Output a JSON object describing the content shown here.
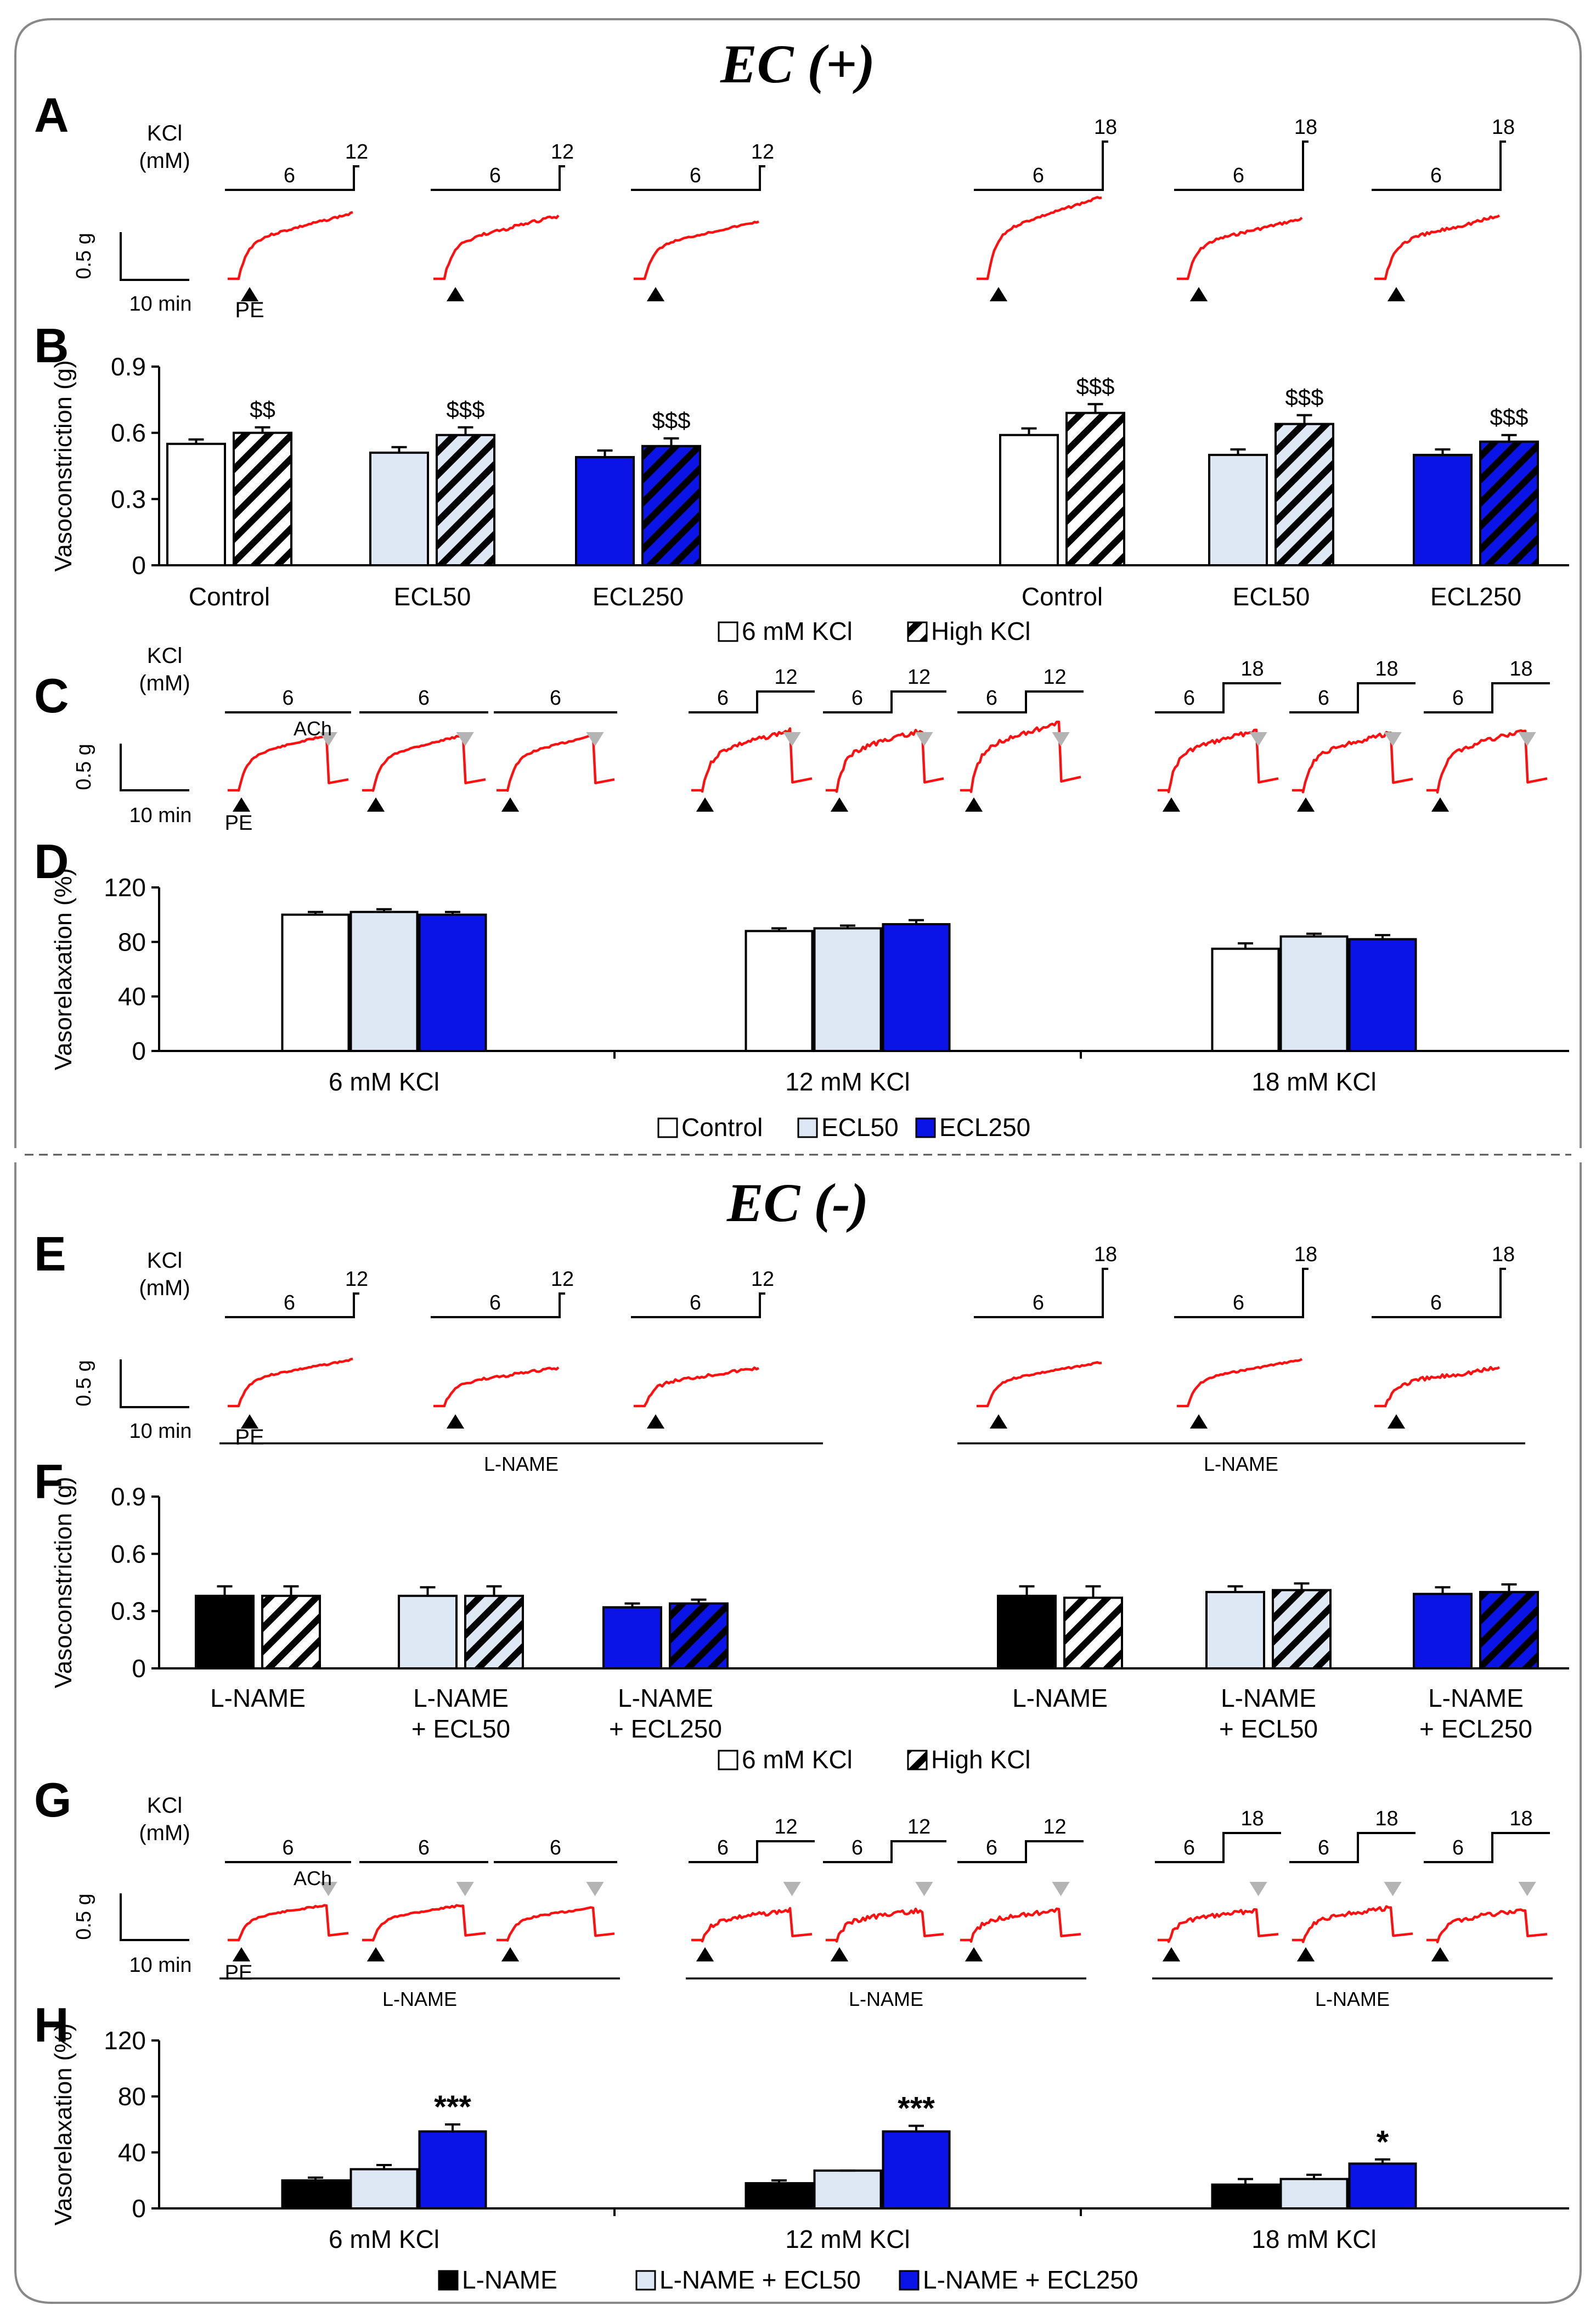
{
  "colors": {
    "trace": "#ff1010",
    "ctrl_fill": "#ffffff",
    "ecl50_fill": "#dde8f4",
    "ecl250_fill": "#0a14e6",
    "lname_fill": "#000000",
    "ach_marker": "#b4b4b4",
    "border": "#888888",
    "text": "#000000"
  },
  "sections": {
    "top": "EC (+)",
    "bottom": "EC (-)"
  },
  "panel_letters": {
    "A": "A",
    "B": "B",
    "C": "C",
    "D": "D",
    "E": "E",
    "F": "F",
    "G": "G",
    "H": "H"
  },
  "trace_labels": {
    "kcl": "KCl",
    "mm": "(mM)",
    "scale_y": "0.5 g",
    "scale_x": "10 min",
    "pe": "PE",
    "ach": "ACh",
    "lname": "L-NAME",
    "conc_6": "6",
    "conc_12": "12",
    "conc_18": "18"
  },
  "chart_data": [
    {
      "panel": "B",
      "type": "bar",
      "ylabel": "Vasoconstriction (g)",
      "ylim": [
        0,
        0.9
      ],
      "yticks": [
        "0",
        "0.3",
        "0.6",
        "0.9"
      ],
      "ytick_values": [
        0,
        0.3,
        0.6,
        0.9
      ],
      "groups": [
        "Control",
        "ECL50",
        "ECL250",
        "Control",
        "ECL50",
        "ECL250"
      ],
      "series": [
        {
          "name": "6 mM KCl",
          "values": [
            0.55,
            0.51,
            0.49,
            0.59,
            0.5,
            0.5
          ],
          "errors": [
            0.02,
            0.025,
            0.03,
            0.03,
            0.025,
            0.025
          ]
        },
        {
          "name": "High KCl",
          "values": [
            0.6,
            0.59,
            0.54,
            0.69,
            0.64,
            0.56
          ],
          "errors": [
            0.025,
            0.035,
            0.035,
            0.04,
            0.04,
            0.03
          ]
        }
      ],
      "annotations": [
        "$$",
        "$$$",
        "$$$",
        "$$$",
        "$$$",
        "$$$"
      ],
      "legend": [
        "6 mM KCl",
        "High KCl"
      ],
      "legend_position": "bottom"
    },
    {
      "panel": "D",
      "type": "bar",
      "ylabel": "Vasorelaxation (%)",
      "ylim": [
        0,
        120
      ],
      "yticks": [
        "0",
        "40",
        "80",
        "120"
      ],
      "ytick_values": [
        0,
        40,
        80,
        120
      ],
      "categories": [
        "6 mM KCl",
        "12 mM KCl",
        "18 mM KCl"
      ],
      "series": [
        {
          "name": "Control",
          "values": [
            100,
            88,
            75
          ],
          "errors": [
            2,
            2,
            4
          ]
        },
        {
          "name": "ECL50",
          "values": [
            102,
            90,
            84
          ],
          "errors": [
            2,
            2,
            2
          ]
        },
        {
          "name": "ECL250",
          "values": [
            100,
            93,
            82
          ],
          "errors": [
            2,
            3,
            3
          ]
        }
      ],
      "legend": [
        "Control",
        "ECL50",
        "ECL250"
      ],
      "legend_position": "bottom"
    },
    {
      "panel": "F",
      "type": "bar",
      "ylabel": "Vasoconstriction (g)",
      "ylim": [
        0,
        0.9
      ],
      "yticks": [
        "0",
        "0.3",
        "0.6",
        "0.9"
      ],
      "ytick_values": [
        0,
        0.3,
        0.6,
        0.9
      ],
      "groups": [
        "L-NAME",
        "L-NAME\n+ ECL50",
        "L-NAME\n+ ECL250",
        "L-NAME",
        "L-NAME\n+ ECL50",
        "L-NAME\n+ ECL250"
      ],
      "series": [
        {
          "name": "6 mM KCl",
          "values": [
            0.38,
            0.38,
            0.32,
            0.38,
            0.4,
            0.39
          ],
          "errors": [
            0.05,
            0.045,
            0.02,
            0.05,
            0.03,
            0.035
          ]
        },
        {
          "name": "High KCl",
          "values": [
            0.38,
            0.38,
            0.34,
            0.37,
            0.41,
            0.4
          ],
          "errors": [
            0.05,
            0.05,
            0.02,
            0.06,
            0.035,
            0.04
          ]
        }
      ],
      "legend": [
        "6 mM KCl",
        "High KCl"
      ],
      "legend_position": "bottom"
    },
    {
      "panel": "H",
      "type": "bar",
      "ylabel": "Vasorelaxation (%)",
      "ylim": [
        0,
        120
      ],
      "yticks": [
        "0",
        "40",
        "80",
        "120"
      ],
      "ytick_values": [
        0,
        40,
        80,
        120
      ],
      "categories": [
        "6 mM KCl",
        "12 mM KCl",
        "18 mM KCl"
      ],
      "series": [
        {
          "name": "L-NAME",
          "values": [
            20,
            18,
            17
          ],
          "errors": [
            2,
            2,
            4
          ]
        },
        {
          "name": "L-NAME + ECL50",
          "values": [
            28,
            27,
            21
          ],
          "errors": [
            3,
            0,
            3
          ]
        },
        {
          "name": "L-NAME + ECL250",
          "values": [
            55,
            55,
            32
          ],
          "errors": [
            5,
            4,
            3
          ]
        }
      ],
      "annotations": [
        "***",
        "***",
        "*"
      ],
      "legend": [
        "L-NAME",
        "L-NAME + ECL50",
        "L-NAME + ECL250"
      ],
      "legend_position": "bottom"
    }
  ]
}
